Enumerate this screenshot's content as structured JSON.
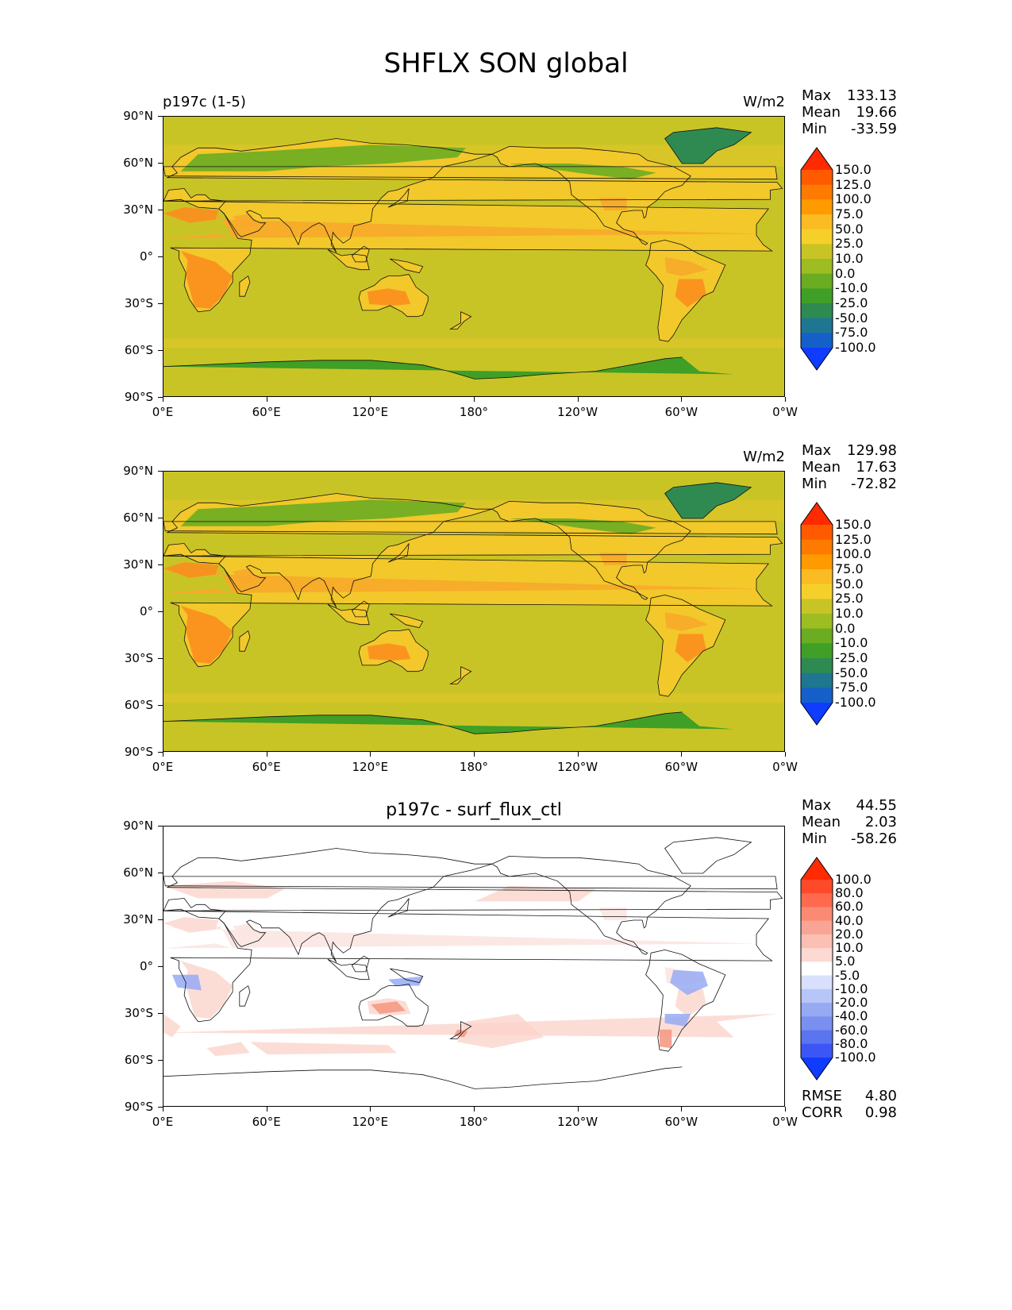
{
  "figure": {
    "title": "SHFLX SON global"
  },
  "axes": {
    "lat_ticks": [
      "90°N",
      "60°N",
      "30°N",
      "0°",
      "30°S",
      "60°S",
      "90°S"
    ],
    "lon_ticks": [
      "0°E",
      "60°E",
      "120°E",
      "180°",
      "120°W",
      "60°W",
      "0°W"
    ]
  },
  "panels": [
    {
      "id": "test",
      "left_title": "p197c (1-5)",
      "center_title": "",
      "units": "W/m2",
      "stats": {
        "max_label": "Max",
        "max": "133.13",
        "mean_label": "Mean",
        "mean": "19.66",
        "min_label": "Min",
        "min": "-33.59"
      },
      "colorbar": {
        "levels": [
          "150.0",
          "125.0",
          "100.0",
          "75.0",
          "50.0",
          "25.0",
          "10.0",
          "0.0",
          "-10.0",
          "-25.0",
          "-50.0",
          "-75.0",
          "-100.0"
        ],
        "colors": [
          "#ff2a00",
          "#ff5a00",
          "#ff7a00",
          "#ff9a00",
          "#fbbb22",
          "#f6d02a",
          "#c9c426",
          "#9dbd22",
          "#6aac22",
          "#3f9f26",
          "#2f8a52",
          "#1f7690",
          "#1560c8",
          "#0f3cff"
        ]
      },
      "regions": {
        "ocean": "#c9c426",
        "land": "#f2c82a",
        "hot_land": "#fb8e1e",
        "warm_land": "#f7a82a",
        "cold": "#6aac22",
        "antarctica": "#3f9f26",
        "greenland": "#2f8a52"
      },
      "extra": []
    },
    {
      "id": "reference",
      "left_title": "",
      "center_title": "",
      "units": "W/m2",
      "stats": {
        "max_label": "Max",
        "max": "129.98",
        "mean_label": "Mean",
        "mean": "17.63",
        "min_label": "Min",
        "min": "-72.82"
      },
      "colorbar": {
        "levels": [
          "150.0",
          "125.0",
          "100.0",
          "75.0",
          "50.0",
          "25.0",
          "10.0",
          "0.0",
          "-10.0",
          "-25.0",
          "-50.0",
          "-75.0",
          "-100.0"
        ],
        "colors": [
          "#ff2a00",
          "#ff5a00",
          "#ff7a00",
          "#ff9a00",
          "#fbbb22",
          "#f6d02a",
          "#c9c426",
          "#9dbd22",
          "#6aac22",
          "#3f9f26",
          "#2f8a52",
          "#1f7690",
          "#1560c8",
          "#0f3cff"
        ]
      },
      "regions": {
        "ocean": "#c9c426",
        "land": "#f2c82a",
        "hot_land": "#fb8e1e",
        "warm_land": "#f7a82a",
        "cold": "#6aac22",
        "antarctica": "#3f9f26",
        "greenland": "#2f8a52"
      },
      "extra": []
    },
    {
      "id": "difference",
      "left_title": "",
      "center_title": "p197c - surf_flux_ctl",
      "units": "",
      "stats": {
        "max_label": "Max",
        "max": "44.55",
        "mean_label": "Mean",
        "mean": "2.03",
        "min_label": "Min",
        "min": "-58.26"
      },
      "colorbar": {
        "levels": [
          "100.0",
          "80.0",
          "60.0",
          "40.0",
          "20.0",
          "10.0",
          "5.0",
          "-5.0",
          "-10.0",
          "-20.0",
          "-40.0",
          "-60.0",
          "-80.0",
          "-100.0"
        ],
        "colors": [
          "#ff2a00",
          "#ff4a2a",
          "#ff6a4e",
          "#fb8a74",
          "#f9a596",
          "#fbbfb4",
          "#fcd9d2",
          "#ffffff",
          "#d8e0fb",
          "#b7c6f8",
          "#96aaf4",
          "#7a90f0",
          "#5b74f0",
          "#3c56f5",
          "#0f3cff"
        ]
      },
      "regions": {
        "ocean": "#ffffff",
        "land": "#ffffff",
        "hot_land": "#fcd9d2",
        "warm_land": "#fbe6e2",
        "cold": "#ffffff",
        "antarctica": "#ffffff",
        "greenland": "#ffffff"
      },
      "extra": [
        {
          "name": "amazon-negative",
          "color": "#96aaf4"
        },
        {
          "name": "sahel-negative",
          "color": "#b7c6f8"
        }
      ],
      "footer": {
        "rmse_label": "RMSE",
        "rmse": "4.80",
        "corr_label": "CORR",
        "corr": "0.98"
      }
    }
  ]
}
